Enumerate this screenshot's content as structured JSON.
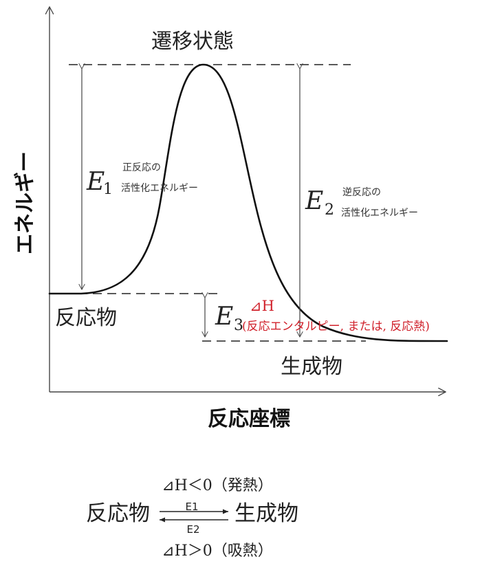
{
  "diagram": {
    "y_axis_label": "エネルギー",
    "x_axis_label": "反応座標",
    "transition_state": "遷移状態",
    "reactant": "反応物",
    "product": "生成物",
    "e1": {
      "symbol": "E",
      "sub": "1",
      "note_line1": "正反応の",
      "note_line2": "活性化エネルギー"
    },
    "e2": {
      "symbol": "E",
      "sub": "2",
      "note_line1": "逆反応の",
      "note_line2": "活性化エネルギー"
    },
    "e3": {
      "symbol": "E",
      "sub": "3"
    },
    "delta_h": {
      "label": "⊿H",
      "note": "(反応エンタルピー, または, 反応熱)"
    },
    "colors": {
      "accent": "#d0202a",
      "line": "#222222"
    }
  },
  "equation": {
    "exothermic": "⊿H＜0（発熱）",
    "reactant": "反応物",
    "product": "生成物",
    "forward": "E1",
    "reverse": "E2",
    "endothermic": "⊿H＞0（吸熱）"
  }
}
